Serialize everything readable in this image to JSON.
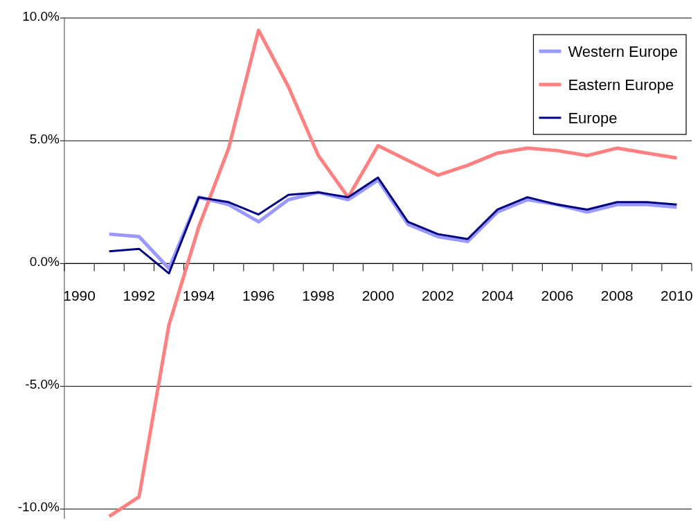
{
  "chart_data": {
    "type": "line",
    "categories": [
      "1990",
      null,
      "1992",
      null,
      "1994",
      null,
      "1996",
      null,
      "1998",
      null,
      "2000",
      null,
      "2002",
      null,
      "2004",
      null,
      "2006",
      null,
      "2008",
      null,
      "2010"
    ],
    "series": [
      {
        "name": "Western Europe",
        "color": "#9999ff",
        "values": [
          null,
          1.2,
          1.1,
          -0.2,
          2.7,
          2.4,
          1.7,
          2.6,
          2.9,
          2.6,
          3.4,
          1.6,
          1.1,
          0.9,
          2.1,
          2.6,
          2.4,
          2.1,
          2.4,
          2.4,
          2.3
        ]
      },
      {
        "name": "Eastern Europe",
        "color": "#ff8080",
        "values": [
          null,
          -10.3,
          -9.5,
          -2.5,
          1.5,
          4.7,
          9.5,
          7.2,
          4.4,
          2.7,
          4.8,
          4.2,
          3.6,
          4.0,
          4.5,
          4.7,
          4.6,
          4.4,
          4.7,
          4.5,
          4.3
        ]
      },
      {
        "name": "Europe",
        "color": "#000080",
        "values": [
          null,
          0.5,
          0.6,
          -0.4,
          2.7,
          2.5,
          2.0,
          2.8,
          2.9,
          2.7,
          3.5,
          1.7,
          1.2,
          1.0,
          2.2,
          2.7,
          2.4,
          2.2,
          2.5,
          2.5,
          2.4
        ]
      }
    ],
    "ylim": [
      -10.4,
      10
    ],
    "yticks": [
      {
        "value": 10,
        "label": "10.0%"
      },
      {
        "value": 5,
        "label": "5.0%"
      },
      {
        "value": 0,
        "label": "0.0%"
      },
      {
        "value": -5,
        "label": "-5.0%"
      },
      {
        "value": -10,
        "label": "-10.0%"
      }
    ],
    "grid": "y",
    "legend": "top right"
  }
}
